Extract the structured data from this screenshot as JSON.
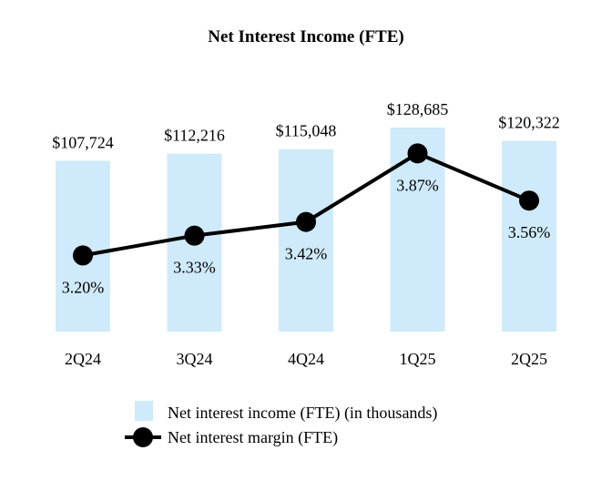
{
  "chart_data": {
    "type": "bar",
    "title": "Net Interest Income (FTE)",
    "categories": [
      "2Q24",
      "3Q24",
      "4Q24",
      "1Q25",
      "2Q25"
    ],
    "series": [
      {
        "name": "Net interest income (FTE) (in thousands)",
        "kind": "bar",
        "values": [
          107724,
          112216,
          115048,
          128685,
          120322
        ],
        "labels": [
          "$107,724",
          "$112,216",
          "$115,048",
          "$128,685",
          "$120,322"
        ],
        "color": "#cfeafa"
      },
      {
        "name": "Net interest margin (FTE)",
        "kind": "line",
        "values": [
          3.2,
          3.33,
          3.42,
          3.87,
          3.56
        ],
        "labels": [
          "3.20%",
          "3.33%",
          "3.42%",
          "3.87%",
          "3.56%"
        ],
        "color": "#000000"
      }
    ],
    "bar_axis_range": [
      0,
      128685
    ],
    "line_axis_range": [
      2.7,
      3.95
    ],
    "legend_position": "bottom",
    "grid": false,
    "xlabel": "",
    "ylabel": ""
  }
}
